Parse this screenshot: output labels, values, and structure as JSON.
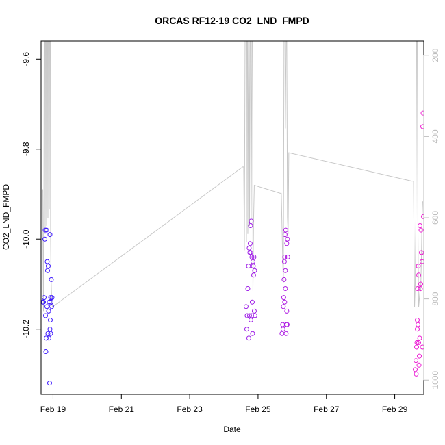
{
  "chart_data": {
    "type": "scatter",
    "title": "ORCAS RF12-19 CO2_LND_FMPD",
    "xlabel": "Date",
    "ylabel": "CO2_LND_FMPD",
    "xlim": [
      18.65,
      29.85
    ],
    "ylim": [
      -10.345,
      -9.56
    ],
    "y2lim": [
      1035,
      165
    ],
    "x_ticks": [
      {
        "value": 19,
        "label": "Feb 19"
      },
      {
        "value": 21,
        "label": "Feb 21"
      },
      {
        "value": 23,
        "label": "Feb 23"
      },
      {
        "value": 25,
        "label": "Feb 25"
      },
      {
        "value": 27,
        "label": "Feb 27"
      },
      {
        "value": 29,
        "label": "Feb 29"
      }
    ],
    "y_ticks": [
      {
        "value": -9.6,
        "label": "-9.6"
      },
      {
        "value": -9.8,
        "label": "-9.8"
      },
      {
        "value": -10.0,
        "label": "-10.0"
      },
      {
        "value": -10.2,
        "label": "-10.2"
      }
    ],
    "y2_ticks": [
      {
        "value": 200,
        "label": "200"
      },
      {
        "value": 400,
        "label": "400"
      },
      {
        "value": 600,
        "label": "600"
      },
      {
        "value": 800,
        "label": "800"
      },
      {
        "value": 1000,
        "label": "1000"
      }
    ],
    "colors": {
      "start": "#3a1aff",
      "end": "#ee1ad2",
      "line": "#c8c8c8"
    },
    "series": [
      {
        "name": "CO2_LND_FMPD",
        "points": [
          [
            18.7,
            -10.14
          ],
          [
            18.72,
            -10.14
          ],
          [
            18.74,
            -10.13
          ],
          [
            18.76,
            -10.0
          ],
          [
            18.77,
            -9.98
          ],
          [
            18.78,
            -10.17
          ],
          [
            18.79,
            -10.25
          ],
          [
            18.8,
            -10.22
          ],
          [
            18.81,
            -9.98
          ],
          [
            18.82,
            -10.15
          ],
          [
            18.83,
            -10.05
          ],
          [
            18.84,
            -10.07
          ],
          [
            18.85,
            -10.21
          ],
          [
            18.86,
            -10.06
          ],
          [
            18.87,
            -10.16
          ],
          [
            18.88,
            -10.22
          ],
          [
            18.89,
            -10.14
          ],
          [
            18.9,
            -10.32
          ],
          [
            18.91,
            -9.99
          ],
          [
            18.92,
            -10.18
          ],
          [
            18.93,
            -10.13
          ],
          [
            18.94,
            -10.14
          ],
          [
            18.95,
            -10.09
          ],
          [
            18.96,
            -10.15
          ],
          [
            18.97,
            -10.13
          ],
          [
            18.91,
            -10.2
          ],
          [
            18.93,
            -10.21
          ],
          [
            24.65,
            -10.15
          ],
          [
            24.67,
            -10.2
          ],
          [
            24.68,
            -10.17
          ],
          [
            24.7,
            -10.11
          ],
          [
            24.72,
            -10.06
          ],
          [
            24.73,
            -10.22
          ],
          [
            24.74,
            -10.02
          ],
          [
            24.75,
            -10.17
          ],
          [
            24.76,
            -10.03
          ],
          [
            24.77,
            -10.01
          ],
          [
            24.78,
            -9.97
          ],
          [
            24.79,
            -10.03
          ],
          [
            24.8,
            -9.96
          ],
          [
            24.81,
            -10.17
          ],
          [
            24.82,
            -10.04
          ],
          [
            24.83,
            -10.14
          ],
          [
            24.84,
            -10.21
          ],
          [
            24.85,
            -10.05
          ],
          [
            24.86,
            -10.06
          ],
          [
            24.87,
            -10.08
          ],
          [
            24.88,
            -10.04
          ],
          [
            24.89,
            -10.16
          ],
          [
            24.9,
            -10.07
          ],
          [
            24.91,
            -10.17
          ],
          [
            24.79,
            -10.18
          ],
          [
            25.7,
            -10.21
          ],
          [
            25.72,
            -10.19
          ],
          [
            25.73,
            -10.2
          ],
          [
            25.74,
            -10.15
          ],
          [
            25.75,
            -10.13
          ],
          [
            25.76,
            -10.09
          ],
          [
            25.77,
            -10.05
          ],
          [
            25.78,
            -10.04
          ],
          [
            25.79,
            -9.99
          ],
          [
            25.8,
            -10.11
          ],
          [
            25.81,
            -9.98
          ],
          [
            25.82,
            -10.21
          ],
          [
            25.83,
            -10.19
          ],
          [
            25.84,
            -10.16
          ],
          [
            25.85,
            -10.19
          ],
          [
            25.86,
            -10.0
          ],
          [
            25.87,
            -10.04
          ],
          [
            25.84,
            -10.01
          ],
          [
            25.78,
            -10.14
          ],
          [
            25.8,
            -10.07
          ],
          [
            29.6,
            -10.29
          ],
          [
            29.62,
            -10.27
          ],
          [
            29.63,
            -10.3
          ],
          [
            29.64,
            -10.24
          ],
          [
            29.65,
            -10.23
          ],
          [
            29.66,
            -10.2
          ],
          [
            29.67,
            -10.11
          ],
          [
            29.68,
            -10.19
          ],
          [
            29.69,
            -10.06
          ],
          [
            29.7,
            -10.08
          ],
          [
            29.71,
            -10.28
          ],
          [
            29.72,
            -10.26
          ],
          [
            29.73,
            -10.22
          ],
          [
            29.74,
            -9.97
          ],
          [
            29.75,
            -10.11
          ],
          [
            29.76,
            -10.1
          ],
          [
            29.77,
            -9.98
          ],
          [
            29.78,
            -10.03
          ],
          [
            29.79,
            -10.03
          ],
          [
            29.8,
            -10.05
          ],
          [
            29.81,
            -10.24
          ],
          [
            29.82,
            -9.75
          ],
          [
            29.83,
            -9.72
          ],
          [
            29.84,
            -9.95
          ],
          [
            29.66,
            -10.18
          ],
          [
            29.7,
            -10.23
          ]
        ]
      }
    ],
    "secondary_line": [
      [
        18.7,
        530
      ],
      [
        18.71,
        680
      ],
      [
        18.72,
        830
      ],
      [
        18.73,
        700
      ],
      [
        18.74,
        165
      ],
      [
        18.76,
        165
      ],
      [
        18.77,
        640
      ],
      [
        18.78,
        165
      ],
      [
        18.8,
        165
      ],
      [
        18.81,
        620
      ],
      [
        18.82,
        165
      ],
      [
        18.84,
        165
      ],
      [
        18.85,
        600
      ],
      [
        18.86,
        165
      ],
      [
        18.88,
        165
      ],
      [
        18.89,
        580
      ],
      [
        18.9,
        165
      ],
      [
        18.92,
        165
      ],
      [
        18.93,
        650
      ],
      [
        18.94,
        740
      ],
      [
        18.96,
        800
      ],
      [
        18.98,
        820
      ],
      [
        24.55,
        475
      ],
      [
        24.58,
        475
      ],
      [
        24.6,
        680
      ],
      [
        24.62,
        165
      ],
      [
        24.65,
        165
      ],
      [
        24.66,
        660
      ],
      [
        24.67,
        165
      ],
      [
        24.69,
        165
      ],
      [
        24.7,
        640
      ],
      [
        24.72,
        165
      ],
      [
        24.74,
        165
      ],
      [
        24.75,
        620
      ],
      [
        24.77,
        165
      ],
      [
        24.79,
        165
      ],
      [
        24.8,
        600
      ],
      [
        24.82,
        165
      ],
      [
        24.84,
        165
      ],
      [
        24.85,
        780
      ],
      [
        24.87,
        600
      ],
      [
        24.89,
        520
      ],
      [
        25.65,
        540
      ],
      [
        25.68,
        540
      ],
      [
        25.7,
        620
      ],
      [
        25.72,
        700
      ],
      [
        25.74,
        760
      ],
      [
        25.76,
        165
      ],
      [
        25.79,
        165
      ],
      [
        25.8,
        380
      ],
      [
        25.82,
        165
      ],
      [
        25.84,
        165
      ],
      [
        25.86,
        600
      ],
      [
        25.88,
        640
      ],
      [
        25.9,
        440
      ],
      [
        29.5,
        510
      ],
      [
        29.55,
        510
      ],
      [
        29.58,
        820
      ],
      [
        29.6,
        760
      ],
      [
        29.62,
        600
      ],
      [
        29.64,
        165
      ],
      [
        29.66,
        165
      ],
      [
        29.68,
        640
      ],
      [
        29.7,
        820
      ],
      [
        29.72,
        800
      ],
      [
        29.74,
        780
      ],
      [
        29.76,
        780
      ],
      [
        29.78,
        700
      ],
      [
        29.8,
        600
      ],
      [
        29.82,
        560
      ]
    ]
  }
}
